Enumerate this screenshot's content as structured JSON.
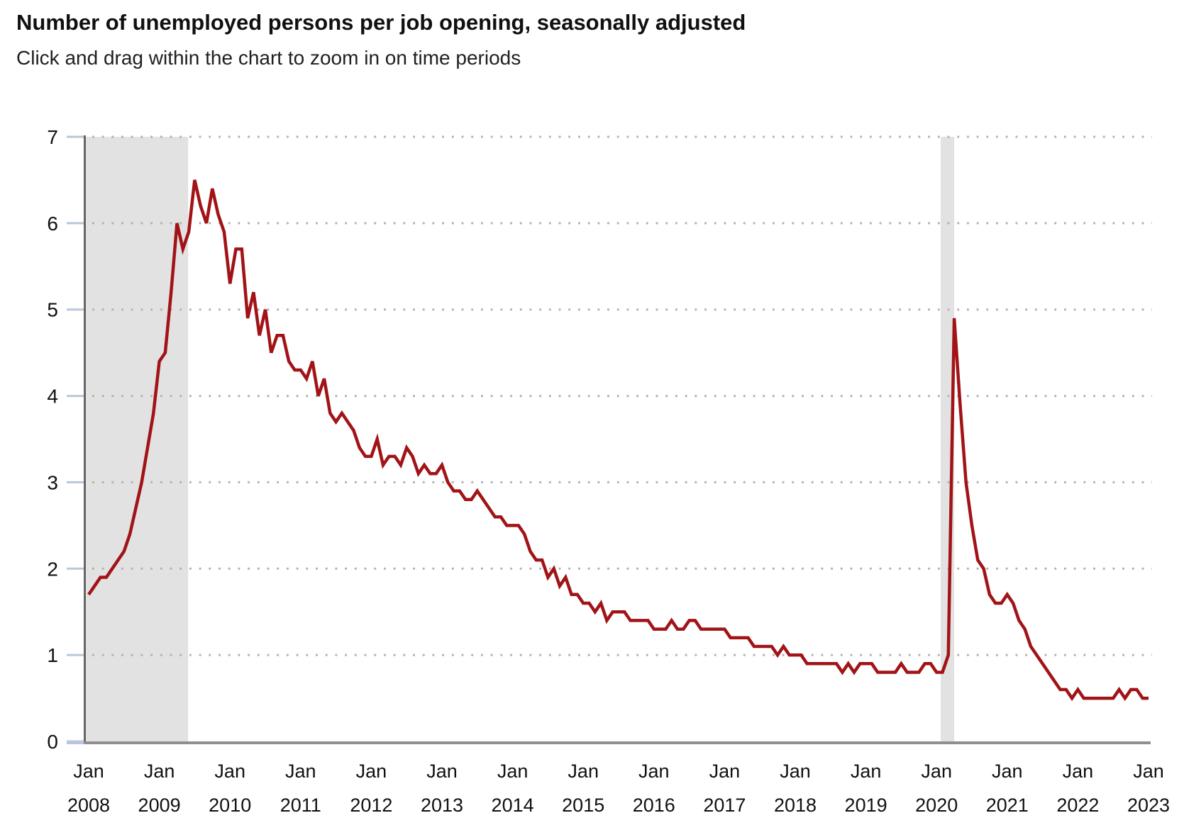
{
  "header": {
    "title": "Number of unemployed persons per job opening, seasonally adjusted",
    "subtitle": "Click and drag within the chart to zoom in on time periods"
  },
  "chart_data": {
    "type": "line",
    "title": "Number of unemployed persons per job opening, seasonally adjusted",
    "series_name": "Unemployed persons per job opening",
    "frequency": "monthly",
    "x_start": "Jan 2008",
    "x_end": "Jan 2023",
    "xlabel": "",
    "ylabel": "",
    "ylim": [
      0,
      7
    ],
    "y_ticks": [
      0,
      1,
      2,
      3,
      4,
      5,
      6,
      7
    ],
    "grid": "dotted-horizontal",
    "legend": "none",
    "line_color": "#a11317",
    "recession_band_color": "#e2e2e2",
    "recession_bands_month_idx": [
      [
        -0.72,
        16.9
      ],
      [
        144.7,
        147.0
      ]
    ],
    "x_tick_month": "Jan",
    "x_ticks": [
      {
        "month": "Jan",
        "year": "2008"
      },
      {
        "month": "Jan",
        "year": "2009"
      },
      {
        "month": "Jan",
        "year": "2010"
      },
      {
        "month": "Jan",
        "year": "2011"
      },
      {
        "month": "Jan",
        "year": "2012"
      },
      {
        "month": "Jan",
        "year": "2013"
      },
      {
        "month": "Jan",
        "year": "2014"
      },
      {
        "month": "Jan",
        "year": "2015"
      },
      {
        "month": "Jan",
        "year": "2016"
      },
      {
        "month": "Jan",
        "year": "2017"
      },
      {
        "month": "Jan",
        "year": "2018"
      },
      {
        "month": "Jan",
        "year": "2019"
      },
      {
        "month": "Jan",
        "year": "2020"
      },
      {
        "month": "Jan",
        "year": "2021"
      },
      {
        "month": "Jan",
        "year": "2022"
      },
      {
        "month": "Jan",
        "year": "2023"
      }
    ],
    "values": [
      1.7,
      1.8,
      1.9,
      1.9,
      2.0,
      2.1,
      2.2,
      2.4,
      2.7,
      3.0,
      3.4,
      3.8,
      4.4,
      4.5,
      5.2,
      6.0,
      5.7,
      5.9,
      6.5,
      6.2,
      6.0,
      6.4,
      6.1,
      5.9,
      5.3,
      5.7,
      5.7,
      4.9,
      5.2,
      4.7,
      5.0,
      4.5,
      4.7,
      4.7,
      4.4,
      4.3,
      4.3,
      4.2,
      4.4,
      4.0,
      4.2,
      3.8,
      3.7,
      3.8,
      3.7,
      3.6,
      3.4,
      3.3,
      3.3,
      3.5,
      3.2,
      3.3,
      3.3,
      3.2,
      3.4,
      3.3,
      3.1,
      3.2,
      3.1,
      3.1,
      3.2,
      3.0,
      2.9,
      2.9,
      2.8,
      2.8,
      2.9,
      2.8,
      2.7,
      2.6,
      2.6,
      2.5,
      2.5,
      2.5,
      2.4,
      2.2,
      2.1,
      2.1,
      1.9,
      2.0,
      1.8,
      1.9,
      1.7,
      1.7,
      1.6,
      1.6,
      1.5,
      1.6,
      1.4,
      1.5,
      1.5,
      1.5,
      1.4,
      1.4,
      1.4,
      1.4,
      1.3,
      1.3,
      1.3,
      1.4,
      1.3,
      1.3,
      1.4,
      1.4,
      1.3,
      1.3,
      1.3,
      1.3,
      1.3,
      1.2,
      1.2,
      1.2,
      1.2,
      1.1,
      1.1,
      1.1,
      1.1,
      1.0,
      1.1,
      1.0,
      1.0,
      1.0,
      0.9,
      0.9,
      0.9,
      0.9,
      0.9,
      0.9,
      0.8,
      0.9,
      0.8,
      0.9,
      0.9,
      0.9,
      0.8,
      0.8,
      0.8,
      0.8,
      0.9,
      0.8,
      0.8,
      0.8,
      0.9,
      0.9,
      0.8,
      0.8,
      1.0,
      4.9,
      3.9,
      3.0,
      2.5,
      2.1,
      2.0,
      1.7,
      1.6,
      1.6,
      1.7,
      1.6,
      1.4,
      1.3,
      1.1,
      1.0,
      0.9,
      0.8,
      0.7,
      0.6,
      0.6,
      0.5,
      0.6,
      0.5,
      0.5,
      0.5,
      0.5,
      0.5,
      0.5,
      0.6,
      0.5,
      0.6,
      0.6,
      0.5,
      0.5
    ]
  }
}
